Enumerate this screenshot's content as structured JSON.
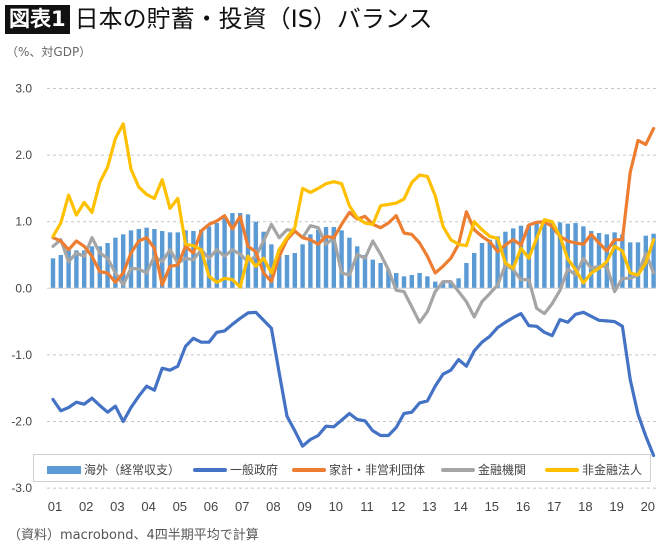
{
  "header": {
    "badge": "図表1",
    "title": "日本の貯蓄・投資（IS）バランス"
  },
  "unit_label": "（%、対GDP）",
  "source": "（資料）macrobond、4四半期平均で計算",
  "colors": {
    "overseas": "#5b9bd5",
    "government": "#4472c4",
    "household": "#ed7d31",
    "financial": "#a5a5a5",
    "nonfinancial": "#ffc000",
    "negative_tick": "#c00000"
  },
  "chart_data": {
    "type": "bar+line",
    "title": "日本の貯蓄・投資（IS）バランス",
    "ylabel": "（%、対GDP）",
    "ylim": [
      -3.0,
      3.0
    ],
    "yticks": [
      "3.0",
      "2.0",
      "1.0",
      "0.0",
      "-1.0",
      "-2.0",
      "-3.0"
    ],
    "xtick_labels": [
      "01",
      "02",
      "03",
      "04",
      "05",
      "06",
      "07",
      "08",
      "09",
      "10",
      "11",
      "12",
      "13",
      "14",
      "15",
      "16",
      "17",
      "18",
      "19",
      "20"
    ],
    "frequency": "quarterly, 2001Q1–2020Q2",
    "grid": "horizontal dashed",
    "legend": "bottom",
    "series": [
      {
        "name": "海外（経常収支）",
        "kind": "bar",
        "color": "#5b9bd5",
        "values": [
          0.45,
          0.5,
          0.58,
          0.57,
          0.57,
          0.63,
          0.63,
          0.68,
          0.76,
          0.81,
          0.87,
          0.89,
          0.91,
          0.89,
          0.86,
          0.84,
          0.84,
          0.87,
          0.86,
          0.88,
          0.93,
          0.98,
          1.06,
          1.13,
          1.13,
          1.11,
          1.0,
          0.85,
          0.66,
          0.58,
          0.5,
          0.53,
          0.66,
          0.81,
          0.88,
          0.92,
          0.92,
          0.87,
          0.76,
          0.63,
          0.5,
          0.43,
          0.38,
          0.28,
          0.23,
          0.18,
          0.2,
          0.23,
          0.18,
          0.1,
          0.08,
          0.1,
          0.15,
          0.38,
          0.53,
          0.68,
          0.73,
          0.78,
          0.85,
          0.9,
          0.94,
          0.95,
          0.98,
          0.99,
          0.98,
          0.99,
          0.97,
          0.98,
          0.93,
          0.86,
          0.83,
          0.81,
          0.84,
          0.81,
          0.69,
          0.69,
          0.79,
          0.82
        ]
      },
      {
        "name": "一般政府",
        "kind": "line",
        "color": "#4472c4",
        "values": [
          -1.67,
          -1.84,
          -1.79,
          -1.71,
          -1.74,
          -1.65,
          -1.76,
          -1.86,
          -1.77,
          -2.0,
          -1.79,
          -1.62,
          -1.47,
          -1.53,
          -1.2,
          -1.23,
          -1.17,
          -0.87,
          -0.75,
          -0.81,
          -0.81,
          -0.66,
          -0.64,
          -0.54,
          -0.45,
          -0.37,
          -0.36,
          -0.48,
          -0.6,
          -1.27,
          -1.92,
          -2.14,
          -2.37,
          -2.27,
          -2.21,
          -2.07,
          -2.08,
          -1.98,
          -1.88,
          -1.97,
          -1.99,
          -2.14,
          -2.21,
          -2.21,
          -2.09,
          -1.88,
          -1.86,
          -1.72,
          -1.69,
          -1.47,
          -1.29,
          -1.23,
          -1.07,
          -1.17,
          -0.94,
          -0.81,
          -0.72,
          -0.59,
          -0.51,
          -0.44,
          -0.38,
          -0.56,
          -0.57,
          -0.66,
          -0.71,
          -0.47,
          -0.51,
          -0.39,
          -0.36,
          -0.42,
          -0.48,
          -0.49,
          -0.5,
          -0.57,
          -1.37,
          -1.89,
          -2.22,
          -2.51
        ]
      },
      {
        "name": "家計・非営利団体",
        "kind": "line",
        "color": "#ed7d31",
        "values": [
          0.76,
          0.71,
          0.58,
          0.71,
          0.63,
          0.48,
          0.25,
          0.23,
          0.09,
          0.23,
          0.53,
          0.71,
          0.76,
          0.6,
          0.05,
          0.33,
          0.35,
          0.63,
          0.53,
          0.86,
          0.96,
          1.01,
          1.09,
          0.89,
          1.08,
          0.63,
          0.55,
          0.23,
          0.1,
          0.48,
          0.73,
          0.86,
          0.76,
          0.73,
          0.66,
          0.78,
          0.76,
          0.96,
          1.14,
          1.04,
          1.08,
          0.96,
          0.91,
          0.98,
          1.09,
          0.83,
          0.81,
          0.68,
          0.48,
          0.23,
          0.33,
          0.45,
          0.66,
          1.15,
          0.88,
          0.78,
          0.7,
          0.55,
          0.65,
          0.73,
          0.65,
          0.95,
          0.99,
          1.0,
          0.93,
          0.78,
          0.71,
          0.68,
          0.66,
          0.81,
          0.68,
          0.56,
          0.73,
          0.73,
          1.74,
          2.22,
          2.16,
          2.4
        ]
      },
      {
        "name": "金融機関",
        "kind": "line",
        "color": "#a5a5a5",
        "values": [
          0.63,
          0.73,
          0.4,
          0.53,
          0.48,
          0.76,
          0.53,
          0.45,
          0.23,
          0.05,
          0.3,
          0.29,
          0.23,
          0.48,
          0.4,
          0.58,
          0.38,
          0.45,
          0.43,
          0.58,
          0.45,
          0.58,
          0.48,
          0.58,
          0.51,
          0.4,
          0.48,
          0.71,
          0.96,
          0.76,
          0.88,
          0.86,
          0.76,
          0.94,
          0.91,
          0.66,
          0.76,
          0.23,
          0.2,
          0.51,
          0.45,
          0.71,
          0.51,
          0.28,
          -0.03,
          -0.05,
          -0.28,
          -0.51,
          -0.35,
          -0.05,
          0.1,
          0.1,
          -0.05,
          -0.2,
          -0.43,
          -0.2,
          -0.08,
          0.05,
          0.35,
          0.28,
          0.13,
          0.13,
          -0.3,
          -0.38,
          -0.23,
          -0.03,
          0.29,
          0.2,
          0.45,
          0.3,
          0.33,
          0.33,
          -0.05,
          0.15,
          0.15,
          0.2,
          0.53,
          0.23
        ]
      },
      {
        "name": "非金融法人",
        "kind": "line",
        "color": "#ffc000",
        "values": [
          0.78,
          0.98,
          1.4,
          1.1,
          1.29,
          1.14,
          1.59,
          1.82,
          2.25,
          2.47,
          1.79,
          1.52,
          1.41,
          1.35,
          1.63,
          1.2,
          1.35,
          0.66,
          0.64,
          0.58,
          0.18,
          0.09,
          0.15,
          0.13,
          0.02,
          0.48,
          0.33,
          0.45,
          0.23,
          0.58,
          0.76,
          0.91,
          1.5,
          1.44,
          1.5,
          1.57,
          1.6,
          1.57,
          1.24,
          1.06,
          0.98,
          0.96,
          1.24,
          1.26,
          1.28,
          1.34,
          1.59,
          1.7,
          1.68,
          1.39,
          0.93,
          0.73,
          0.66,
          0.64,
          1.0,
          0.88,
          0.78,
          0.75,
          0.38,
          0.3,
          0.6,
          0.45,
          0.75,
          1.03,
          1.0,
          0.78,
          0.44,
          0.28,
          0.08,
          0.23,
          0.3,
          0.4,
          0.63,
          0.56,
          0.23,
          0.2,
          0.38,
          0.73
        ]
      }
    ]
  }
}
